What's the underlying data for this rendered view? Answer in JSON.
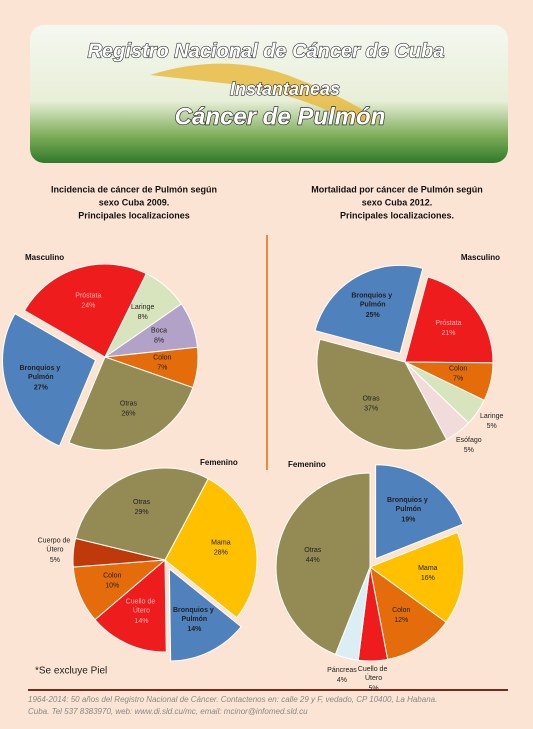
{
  "header": {
    "title": "Registro Nacional de Cáncer de Cuba",
    "subtitle": "Instantaneas",
    "heading": "Cáncer de Pulmón"
  },
  "chart_data": [
    {
      "type": "pie",
      "title": [
        "Incidencia de cáncer de Pulmón según",
        "sexo Cuba 2009.",
        "Principales localizaciones"
      ],
      "subtitle": "Masculino",
      "categories": [
        "Próstata",
        "Laringe",
        "Boca",
        "Colon",
        "Otras",
        "Bronquios y Pulmón"
      ],
      "values": [
        24,
        8,
        8,
        7,
        26,
        27
      ],
      "value_labels": [
        "24%",
        "8%",
        "8%",
        "7%",
        "26%",
        "27%"
      ],
      "colors": [
        "#ee1c1c",
        "#d7e4bd",
        "#b3a2c7",
        "#e46c0a",
        "#948a54",
        "#4f81bd"
      ],
      "explode": [
        false,
        false,
        false,
        false,
        false,
        true
      ]
    },
    {
      "type": "pie",
      "subtitle": "Femenino",
      "categories": [
        "Mama",
        "Bronquios y Pulmón",
        "Cuello de Útero",
        "Colon",
        "Cuerpo de Útero",
        "Otras"
      ],
      "values": [
        28,
        14,
        14,
        10,
        5,
        29
      ],
      "value_labels": [
        "28%",
        "14%",
        "14%",
        "10%",
        "5%",
        "29%"
      ],
      "colors": [
        "#ffc000",
        "#4f81bd",
        "#ee1c1c",
        "#e46c0a",
        "#c0390b",
        "#948a54"
      ],
      "explode": [
        false,
        true,
        false,
        false,
        false,
        false
      ]
    },
    {
      "type": "pie",
      "title": [
        "Mortalidad por cáncer de Pulmón según",
        "sexo Cuba 2012.",
        "Principales localizaciones."
      ],
      "subtitle": "Masculino",
      "categories": [
        "Bronquios y Pulmón",
        "Próstata",
        "Colon",
        "Laringe",
        "Esófago",
        "Otras"
      ],
      "values": [
        25,
        21,
        7,
        5,
        5,
        37
      ],
      "value_labels": [
        "25%",
        "21%",
        "7%",
        "5%",
        "5%",
        "37%"
      ],
      "colors": [
        "#4f81bd",
        "#ee1c1c",
        "#e46c0a",
        "#d7e4bd",
        "#f2dcdb",
        "#948a54"
      ],
      "explode": [
        true,
        false,
        false,
        false,
        false,
        false
      ]
    },
    {
      "type": "pie",
      "subtitle": "Femenino",
      "categories": [
        "Bronquios y Pulmón",
        "Mama",
        "Colon",
        "Cuello de Útero",
        "Páncreas",
        "Otras"
      ],
      "values": [
        19,
        16,
        12,
        5,
        4,
        44
      ],
      "value_labels": [
        "19%",
        "16%",
        "12%",
        "5%",
        "4%",
        "44%"
      ],
      "colors": [
        "#4f81bd",
        "#ffc000",
        "#e46c0a",
        "#ee1c1c",
        "#dbeef4",
        "#948a54"
      ],
      "explode": [
        true,
        false,
        false,
        false,
        false,
        false
      ]
    }
  ],
  "note": "*Se excluye Piel",
  "footer": {
    "lines": [
      "1964-2014: 50 años del Registro Nacional de Cáncer. Contactenos en: calle 29 y F, vedado, CP 10400, La Habana.",
      "Cuba. Tel 537 8383970, web: www.di.sld.cu/mc, email: mcinor@infomed.sld.cu"
    ]
  }
}
